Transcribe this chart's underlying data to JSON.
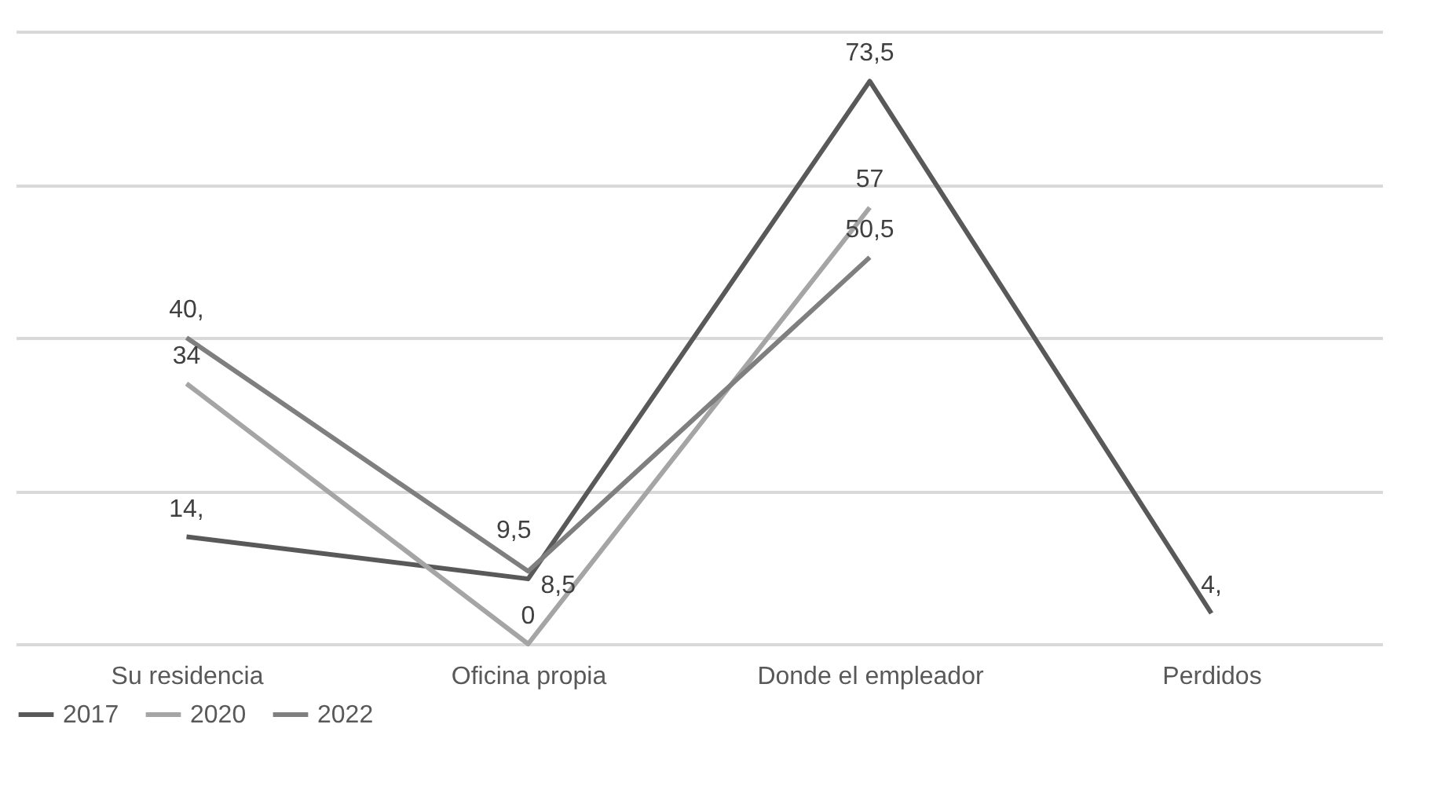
{
  "chart_data": {
    "type": "line",
    "categories": [
      "Su residencia",
      "Oficina propia",
      "Donde el empleador",
      "Perdidos"
    ],
    "series": [
      {
        "name": "2017",
        "color": "#595959",
        "values": [
          14,
          8.5,
          73.5,
          4
        ],
        "value_labels": [
          "14,",
          "8,5",
          "73,5",
          "4,"
        ]
      },
      {
        "name": "2020",
        "color": "#a5a5a5",
        "values": [
          34,
          0,
          57,
          null
        ],
        "value_labels": [
          "34",
          "0",
          "57",
          null
        ]
      },
      {
        "name": "2022",
        "color": "#7f7f7f",
        "values": [
          40,
          9.5,
          50.5,
          null
        ],
        "value_labels": [
          "40,",
          "9,5",
          "50,5",
          null
        ]
      }
    ],
    "ylim": [
      0,
      80
    ],
    "yticks": [
      {
        "value": 0,
        "label": null
      },
      {
        "value": 20,
        "label": null
      },
      {
        "value": 40,
        "label": null
      },
      {
        "value": 60,
        "label": null
      },
      {
        "value": 80,
        "label": null
      }
    ],
    "grid": "y",
    "tick_labels": "x",
    "legend": "bottom",
    "marker": "none",
    "line_style": "solid"
  }
}
